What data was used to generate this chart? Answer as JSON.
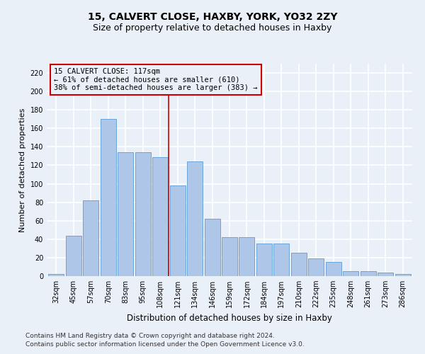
{
  "title_line1": "15, CALVERT CLOSE, HAXBY, YORK, YO32 2ZY",
  "title_line2": "Size of property relative to detached houses in Haxby",
  "xlabel": "Distribution of detached houses by size in Haxby",
  "ylabel": "Number of detached properties",
  "categories": [
    "32sqm",
    "45sqm",
    "57sqm",
    "70sqm",
    "83sqm",
    "95sqm",
    "108sqm",
    "121sqm",
    "134sqm",
    "146sqm",
    "159sqm",
    "172sqm",
    "184sqm",
    "197sqm",
    "210sqm",
    "222sqm",
    "235sqm",
    "248sqm",
    "261sqm",
    "273sqm",
    "286sqm"
  ],
  "values": [
    2,
    44,
    82,
    170,
    134,
    134,
    129,
    98,
    124,
    62,
    42,
    42,
    35,
    35,
    25,
    19,
    15,
    5,
    5,
    4,
    2
  ],
  "bar_color": "#aec6e8",
  "bar_edge_color": "#5b9bd5",
  "marker_index": 7,
  "marker_color": "#cc0000",
  "annotation_text": "15 CALVERT CLOSE: 117sqm\n← 61% of detached houses are smaller (610)\n38% of semi-detached houses are larger (383) →",
  "annotation_box_color": "#cc0000",
  "ylim": [
    0,
    230
  ],
  "yticks": [
    0,
    20,
    40,
    60,
    80,
    100,
    120,
    140,
    160,
    180,
    200,
    220
  ],
  "footnote1": "Contains HM Land Registry data © Crown copyright and database right 2024.",
  "footnote2": "Contains public sector information licensed under the Open Government Licence v3.0.",
  "bg_color": "#eaf0f8",
  "grid_color": "#ffffff",
  "title_fontsize": 10,
  "subtitle_fontsize": 9,
  "tick_fontsize": 7,
  "ylabel_fontsize": 8,
  "xlabel_fontsize": 8.5,
  "footnote_fontsize": 6.5,
  "annotation_fontsize": 7.5
}
